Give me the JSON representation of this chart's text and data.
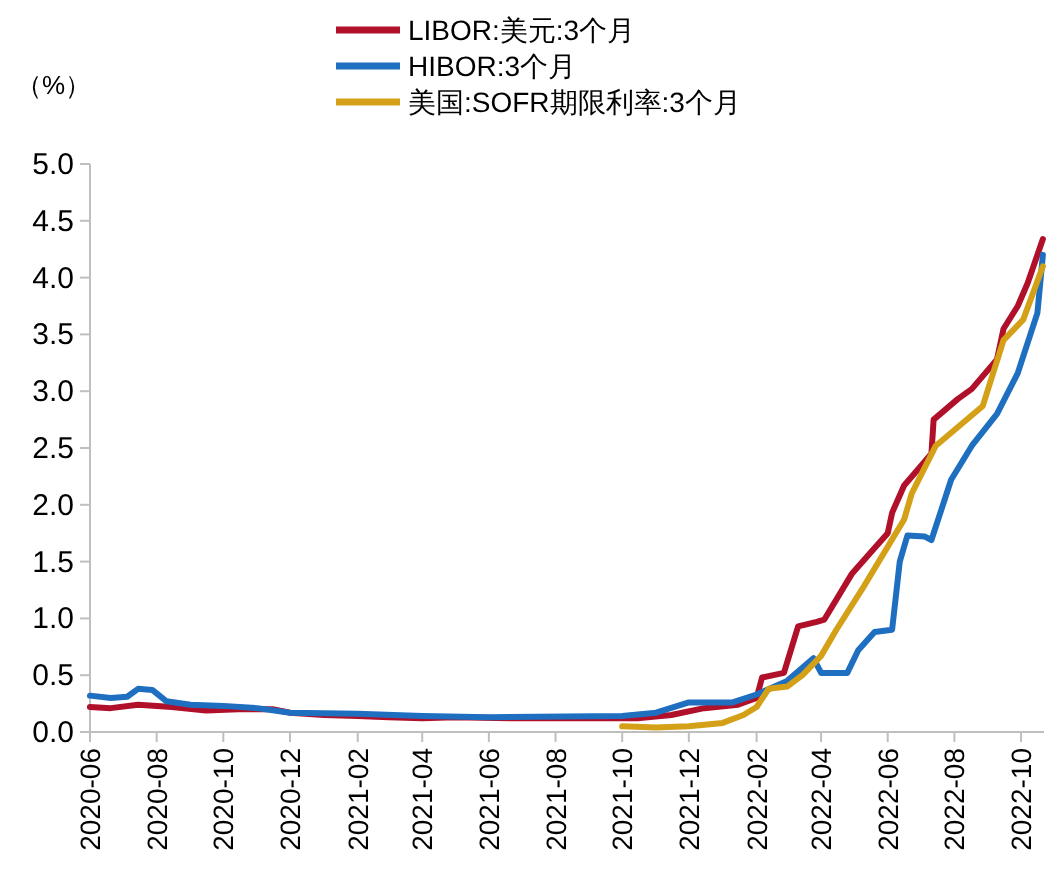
{
  "chart_data": {
    "type": "line",
    "ylabel": "（%）",
    "legend": "top",
    "line_style": "solid",
    "marker": "none",
    "grid": false,
    "xlim": [
      "2020-06-01",
      "2022-10-22"
    ],
    "xticks": [
      "2020-06",
      "2020-08",
      "2020-10",
      "2020-12",
      "2021-02",
      "2021-04",
      "2021-06",
      "2021-08",
      "2021-10",
      "2021-12",
      "2022-02",
      "2022-04",
      "2022-06",
      "2022-08",
      "2022-10"
    ],
    "ylim": [
      0,
      5
    ],
    "yticks": [
      {
        "value": 0,
        "label": "0.0"
      },
      {
        "value": 0.5,
        "label": "0.5"
      },
      {
        "value": 1,
        "label": "1.0"
      },
      {
        "value": 1.5,
        "label": "1.5"
      },
      {
        "value": 2,
        "label": "2.0"
      },
      {
        "value": 2.5,
        "label": "2.5"
      },
      {
        "value": 3,
        "label": "3.0"
      },
      {
        "value": 3.5,
        "label": "3.5"
      },
      {
        "value": 4,
        "label": "4.0"
      },
      {
        "value": 4.5,
        "label": "4.5"
      },
      {
        "value": 5,
        "label": "5.0"
      }
    ],
    "series": [
      {
        "name": "LIBOR:美元:3个月",
        "color": "#b0102a",
        "x": [
          "2020-06-01",
          "2020-06-20",
          "2020-07-15",
          "2020-08-15",
          "2020-09-15",
          "2020-10-15",
          "2020-11-15",
          "2020-12-01",
          "2021-01-01",
          "2021-02-01",
          "2021-03-01",
          "2021-04-01",
          "2021-05-01",
          "2021-07-01",
          "2021-09-01",
          "2021-10-15",
          "2021-11-15",
          "2021-12-15",
          "2022-01-15",
          "2022-02-01",
          "2022-02-06",
          "2022-02-26",
          "2022-03-11",
          "2022-03-28",
          "2022-04-04",
          "2022-04-29",
          "2022-05-20",
          "2022-06-01",
          "2022-06-05",
          "2022-06-16",
          "2022-07-11",
          "2022-07-13",
          "2022-08-04",
          "2022-08-17",
          "2022-09-09",
          "2022-09-15",
          "2022-09-28",
          "2022-10-07",
          "2022-10-21"
        ],
        "values": [
          0.22,
          0.21,
          0.24,
          0.22,
          0.19,
          0.2,
          0.2,
          0.17,
          0.15,
          0.14,
          0.13,
          0.12,
          0.13,
          0.12,
          0.12,
          0.12,
          0.15,
          0.21,
          0.24,
          0.3,
          0.48,
          0.52,
          0.93,
          0.97,
          0.99,
          1.39,
          1.62,
          1.75,
          1.93,
          2.17,
          2.45,
          2.75,
          2.93,
          3.02,
          3.28,
          3.55,
          3.75,
          3.95,
          4.34
        ]
      },
      {
        "name": "HIBOR:3个月",
        "color": "#1f6fc0",
        "x": [
          "2020-06-01",
          "2020-06-20",
          "2020-07-05",
          "2020-07-15",
          "2020-07-28",
          "2020-08-10",
          "2020-09-01",
          "2020-10-01",
          "2020-11-01",
          "2020-12-01",
          "2021-02-01",
          "2021-04-01",
          "2021-06-01",
          "2021-10-01",
          "2021-11-01",
          "2021-12-01",
          "2022-01-10",
          "2022-02-01",
          "2022-03-01",
          "2022-03-25",
          "2022-04-01",
          "2022-04-25",
          "2022-05-05",
          "2022-05-20",
          "2022-06-05",
          "2022-06-12",
          "2022-06-19",
          "2022-07-05",
          "2022-07-11",
          "2022-07-29",
          "2022-08-17",
          "2022-09-09",
          "2022-09-28",
          "2022-10-16",
          "2022-10-21"
        ],
        "values": [
          0.32,
          0.3,
          0.31,
          0.38,
          0.37,
          0.27,
          0.24,
          0.23,
          0.21,
          0.17,
          0.16,
          0.14,
          0.13,
          0.14,
          0.17,
          0.26,
          0.26,
          0.33,
          0.45,
          0.65,
          0.52,
          0.52,
          0.72,
          0.88,
          0.9,
          1.5,
          1.73,
          1.72,
          1.69,
          2.22,
          2.52,
          2.8,
          3.16,
          3.69,
          4.2
        ]
      },
      {
        "name": "美国:SOFR期限利率:3个月",
        "color": "#d4a017",
        "x": [
          "2021-10-01",
          "2021-11-01",
          "2021-12-01",
          "2022-01-01",
          "2022-01-20",
          "2022-02-01",
          "2022-02-12",
          "2022-03-01",
          "2022-03-15",
          "2022-04-01",
          "2022-04-15",
          "2022-05-10",
          "2022-06-16",
          "2022-06-23",
          "2022-07-15",
          "2022-08-27",
          "2022-09-15",
          "2022-10-03",
          "2022-10-21"
        ],
        "values": [
          0.05,
          0.04,
          0.05,
          0.08,
          0.15,
          0.22,
          0.38,
          0.4,
          0.5,
          0.67,
          0.9,
          1.28,
          1.87,
          2.1,
          2.52,
          2.87,
          3.45,
          3.63,
          4.1
        ]
      }
    ]
  }
}
